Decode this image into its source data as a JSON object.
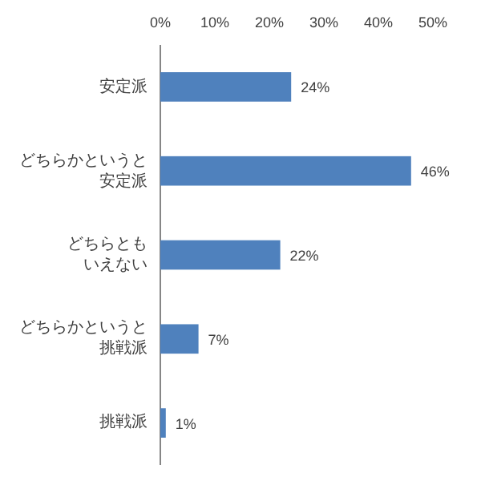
{
  "chart_data": {
    "type": "bar",
    "orientation": "horizontal",
    "categories": [
      "安定派",
      "どちらかというと安定派",
      "どちらともいえない",
      "どちらかというと挑戦派",
      "挑戦派"
    ],
    "values": [
      24,
      46,
      22,
      7,
      1
    ],
    "value_labels": [
      "24%",
      "46%",
      "22%",
      "7%",
      "1%"
    ],
    "color": "#4f81bd",
    "xlim": [
      0,
      50
    ],
    "xticks": [
      {
        "value": 0,
        "label": "0%"
      },
      {
        "value": 10,
        "label": "10%"
      },
      {
        "value": 20,
        "label": "20%"
      },
      {
        "value": 30,
        "label": "30%"
      },
      {
        "value": 40,
        "label": "40%"
      },
      {
        "value": 50,
        "label": "50%"
      }
    ],
    "grid": false
  }
}
